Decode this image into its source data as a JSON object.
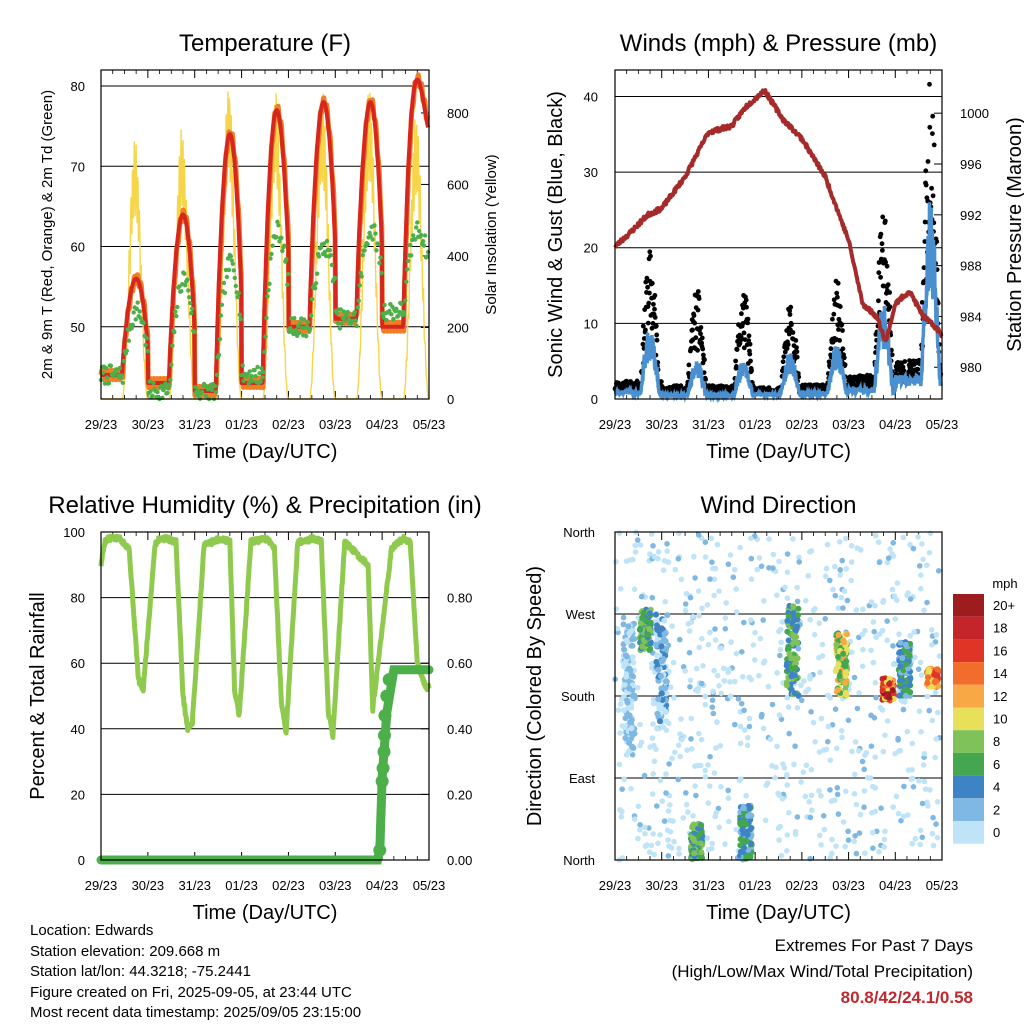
{
  "chart_data": [
    {
      "type": "line",
      "title": "Temperature (F)",
      "xlabel": "Time (Day/UTC)",
      "ylabel": "2m & 9m T (Red, Orange) & 2m Td (Green)",
      "ylabel_right": "Solar Insolation (Yellow)",
      "x_ticks": [
        "29/23",
        "30/23",
        "31/23",
        "01/23",
        "02/23",
        "03/23",
        "04/23",
        "05/23"
      ],
      "xlim": [
        0,
        7
      ],
      "ylim": [
        41,
        82
      ],
      "y_ticks": [
        50,
        60,
        70,
        80
      ],
      "y2lim": [
        0,
        920
      ],
      "y2_ticks": [
        0,
        200,
        400,
        600,
        800
      ],
      "grid": "horizontal",
      "colors": {
        "t2m": "#d7261e",
        "t9m": "#f07e26",
        "td": "#4daf4a",
        "solar": "#f7d548"
      },
      "series": [
        {
          "name": "2m T",
          "axis": "left",
          "day_points": [
            {
              "day": 0,
              "max": 56,
              "min": 44
            },
            {
              "day": 1,
              "max": 64,
              "min": 43
            },
            {
              "day": 2,
              "max": 74,
              "min": 42
            },
            {
              "day": 3,
              "max": 77,
              "min": 43
            },
            {
              "day": 4,
              "max": 78,
              "min": 50
            },
            {
              "day": 5,
              "max": 78,
              "min": 51
            },
            {
              "day": 6,
              "max": 80.8,
              "min": 50
            },
            {
              "day": 7,
              "max": 71,
              "min": 71
            }
          ]
        },
        {
          "name": "9m T",
          "axis": "left"
        },
        {
          "name": "2m Td",
          "axis": "left",
          "day_points": [
            {
              "day": 0,
              "max": 52,
              "min": 44
            },
            {
              "day": 1,
              "max": 56,
              "min": 42
            },
            {
              "day": 2,
              "max": 58,
              "min": 42
            },
            {
              "day": 3,
              "max": 62,
              "min": 44
            },
            {
              "day": 4,
              "max": 60,
              "min": 50
            },
            {
              "day": 5,
              "max": 62,
              "min": 51
            },
            {
              "day": 6,
              "max": 62,
              "min": 52
            },
            {
              "day": 7,
              "max": 55,
              "min": 55
            }
          ]
        },
        {
          "name": "Solar Insolation",
          "axis": "right",
          "daily_peak": [
            730,
            760,
            880,
            870,
            860,
            870,
            800
          ]
        }
      ]
    },
    {
      "type": "line",
      "title": "Winds (mph) & Pressure (mb)",
      "xlabel": "Time (Day/UTC)",
      "ylabel": "Sonic Wind & Gust (Blue, Black)",
      "ylabel_right": "Station Pressure (Maroon)",
      "x_ticks": [
        "29/23",
        "30/23",
        "31/23",
        "01/23",
        "02/23",
        "03/23",
        "04/23",
        "05/23"
      ],
      "xlim": [
        0,
        7
      ],
      "ylim": [
        0,
        43.5
      ],
      "y_ticks": [
        0,
        10,
        20,
        30,
        40
      ],
      "y2lim": [
        977.5,
        1003.4
      ],
      "y2_ticks": [
        980,
        984,
        988,
        992,
        996,
        1000
      ],
      "grid": "horizontal",
      "colors": {
        "wind": "#4a90d0",
        "gust": "#000000",
        "pressure": "#a52a2a"
      },
      "series": [
        {
          "name": "Station Pressure",
          "axis": "right",
          "x": [
            0,
            0.3,
            0.7,
            1.0,
            1.5,
            2.0,
            2.5,
            2.8,
            3.2,
            3.6,
            4.0,
            4.5,
            5.0,
            5.3,
            5.6,
            5.8,
            6.0,
            6.3,
            6.6,
            6.9,
            7.0
          ],
          "y": [
            989.5,
            990.5,
            992,
            992.5,
            995,
            998.5,
            999,
            1000.5,
            1001.8,
            999.5,
            998,
            995,
            990,
            985,
            984,
            982,
            985,
            986,
            984,
            983,
            982.5
          ]
        },
        {
          "name": "Sonic Wind",
          "axis": "left",
          "daily_peak": [
            9,
            5,
            5,
            6,
            7,
            12,
            25,
            15
          ]
        },
        {
          "name": "Gust",
          "axis": "left",
          "daily_peak": [
            19,
            14,
            14,
            12,
            15,
            25,
            41,
            29
          ]
        }
      ]
    },
    {
      "type": "line",
      "title": "Relative Humidity (%) & Precipitation (in)",
      "xlabel": "Time (Day/UTC)",
      "ylabel": "Percent & Total Rainfall",
      "x_ticks": [
        "29/23",
        "30/23",
        "31/23",
        "01/23",
        "02/23",
        "03/23",
        "04/23",
        "05/23"
      ],
      "xlim": [
        0,
        7
      ],
      "ylim": [
        0,
        100
      ],
      "y_ticks": [
        0,
        20,
        40,
        60,
        80,
        100
      ],
      "y2lim": [
        0,
        1.0
      ],
      "y2_ticks": [
        "0.00",
        "0.20",
        "0.40",
        "0.60",
        "0.80"
      ],
      "grid": "horizontal",
      "colors": {
        "rh": "#8fca4f",
        "precip": "#4daf4a"
      },
      "series": [
        {
          "name": "Relative Humidity",
          "axis": "left",
          "x": [
            0,
            0.08,
            0.15,
            0.4,
            0.6,
            0.8,
            0.9,
            1.05,
            1.15,
            1.25,
            1.4,
            1.6,
            1.75,
            1.85,
            1.95,
            2.2,
            2.55,
            2.75,
            2.85,
            2.95,
            3.2,
            3.55,
            3.7,
            3.85,
            3.95,
            4.2,
            4.55,
            4.7,
            4.85,
            4.95,
            5.2,
            5.55,
            5.7,
            5.8,
            6.2,
            6.45,
            6.6,
            6.75,
            6.95,
            7.0
          ],
          "y": [
            90,
            97,
            98,
            98,
            95,
            55,
            52,
            78,
            96,
            98,
            98,
            97,
            50,
            40,
            42,
            96,
            98,
            97,
            52,
            44,
            97,
            98,
            95,
            48,
            39,
            97,
            98,
            97,
            45,
            38,
            97,
            92,
            90,
            46,
            95,
            98,
            97,
            60,
            52,
            53
          ]
        },
        {
          "name": "Total Precipitation",
          "axis": "right",
          "x": [
            0,
            5.9,
            5.95,
            6.0,
            6.1,
            6.25,
            6.5,
            7.0
          ],
          "y": [
            0,
            0,
            0.03,
            0.25,
            0.45,
            0.58,
            0.58,
            0.58
          ]
        }
      ]
    },
    {
      "type": "scatter",
      "title": "Wind Direction",
      "xlabel": "Time (Day/UTC)",
      "ylabel": "Direction (Colored By Speed)",
      "x_ticks": [
        "29/23",
        "30/23",
        "31/23",
        "01/23",
        "02/23",
        "03/23",
        "04/23",
        "05/23"
      ],
      "xlim": [
        0,
        7
      ],
      "y_ticks": [
        "North",
        "East",
        "South",
        "West",
        "North"
      ],
      "ylim_deg": [
        0,
        360
      ],
      "grid": "horizontal",
      "legend": {
        "title": "mph",
        "placement": "right",
        "labels": [
          "20+",
          "18",
          "16",
          "14",
          "12",
          "10",
          "8",
          "6",
          "4",
          "2",
          "0"
        ],
        "colors": [
          "#9e1b1e",
          "#c4252a",
          "#e03526",
          "#f26d2c",
          "#f9a846",
          "#e8e05a",
          "#7fc25a",
          "#44a64e",
          "#3e84c4",
          "#7fb8e3",
          "#bfe3f7"
        ]
      },
      "clusters": [
        {
          "day": 0.3,
          "dir_min": 120,
          "dir_max": 260,
          "speed": "0-2"
        },
        {
          "day": 0.65,
          "dir_min": 230,
          "dir_max": 275,
          "speed": "4-8"
        },
        {
          "day": 1.0,
          "dir_min": 150,
          "dir_max": 270,
          "speed": "0-4"
        },
        {
          "day": 1.75,
          "dir_min": 0,
          "dir_max": 40,
          "speed": "4-8"
        },
        {
          "day": 2.8,
          "dir_min": 0,
          "dir_max": 60,
          "speed": "2-6"
        },
        {
          "day": 3.8,
          "dir_min": 180,
          "dir_max": 280,
          "speed": "4-8"
        },
        {
          "day": 4.85,
          "dir_min": 180,
          "dir_max": 250,
          "speed": "6-12"
        },
        {
          "day": 5.85,
          "dir_min": 175,
          "dir_max": 200,
          "speed": "10-20+"
        },
        {
          "day": 6.2,
          "dir_min": 180,
          "dir_max": 240,
          "speed": "2-6"
        },
        {
          "day": 6.8,
          "dir_min": 190,
          "dir_max": 210,
          "speed": "10-16"
        }
      ]
    }
  ],
  "station": {
    "location": "Location: Edwards",
    "elevation": "Station elevation: 209.668 m",
    "latlon": "Station lat/lon: 44.3218; -75.2441",
    "created": "Figure created on Fri, 2025-09-05, at 23:44 UTC",
    "recent": "Most recent data timestamp: 2025/09/05 23:15:00"
  },
  "extremes": {
    "line1": "Extremes For Past 7 Days",
    "line2": "(High/Low/Max Wind/Total Precipitation)",
    "values": "80.8/42/24.1/0.58",
    "value_color": "#c0282d"
  }
}
